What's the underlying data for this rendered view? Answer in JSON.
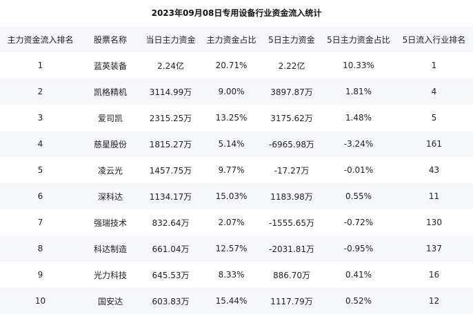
{
  "title": "2023年09月08日专用设备行业资金流入统计",
  "headers": [
    "主力资金流入排名",
    "股票名称",
    "当日主力资金",
    "主力资金占比",
    "5日主力资金",
    "5日主力资金占比",
    "5日流入行业排名"
  ],
  "rows": [
    [
      "1",
      "蓝英装备",
      "2.24亿",
      "20.71%",
      "2.22亿",
      "10.33%",
      "1"
    ],
    [
      "2",
      "凯格精机",
      "3114.99万",
      "9.00%",
      "3897.87万",
      "1.81%",
      "4"
    ],
    [
      "3",
      "爱司凯",
      "2315.25万",
      "13.25%",
      "3175.62万",
      "1.48%",
      "5"
    ],
    [
      "4",
      "慈星股份",
      "1815.27万",
      "5.14%",
      "-6965.98万",
      "-3.24%",
      "161"
    ],
    [
      "5",
      "凌云光",
      "1457.75万",
      "9.77%",
      "-17.27万",
      "-0.01%",
      "43"
    ],
    [
      "6",
      "深科达",
      "1134.17万",
      "15.03%",
      "1183.98万",
      "0.55%",
      "11"
    ],
    [
      "7",
      "强瑞技术",
      "832.64万",
      "2.07%",
      "-1555.65万",
      "-0.72%",
      "130"
    ],
    [
      "8",
      "科达制造",
      "661.04万",
      "12.57%",
      "-2031.81万",
      "-0.95%",
      "137"
    ],
    [
      "9",
      "光力科技",
      "645.53万",
      "8.33%",
      "886.70万",
      "0.41%",
      "16"
    ],
    [
      "10",
      "国安达",
      "603.83万",
      "15.44%",
      "1117.79万",
      "0.52%",
      "12"
    ]
  ]
}
